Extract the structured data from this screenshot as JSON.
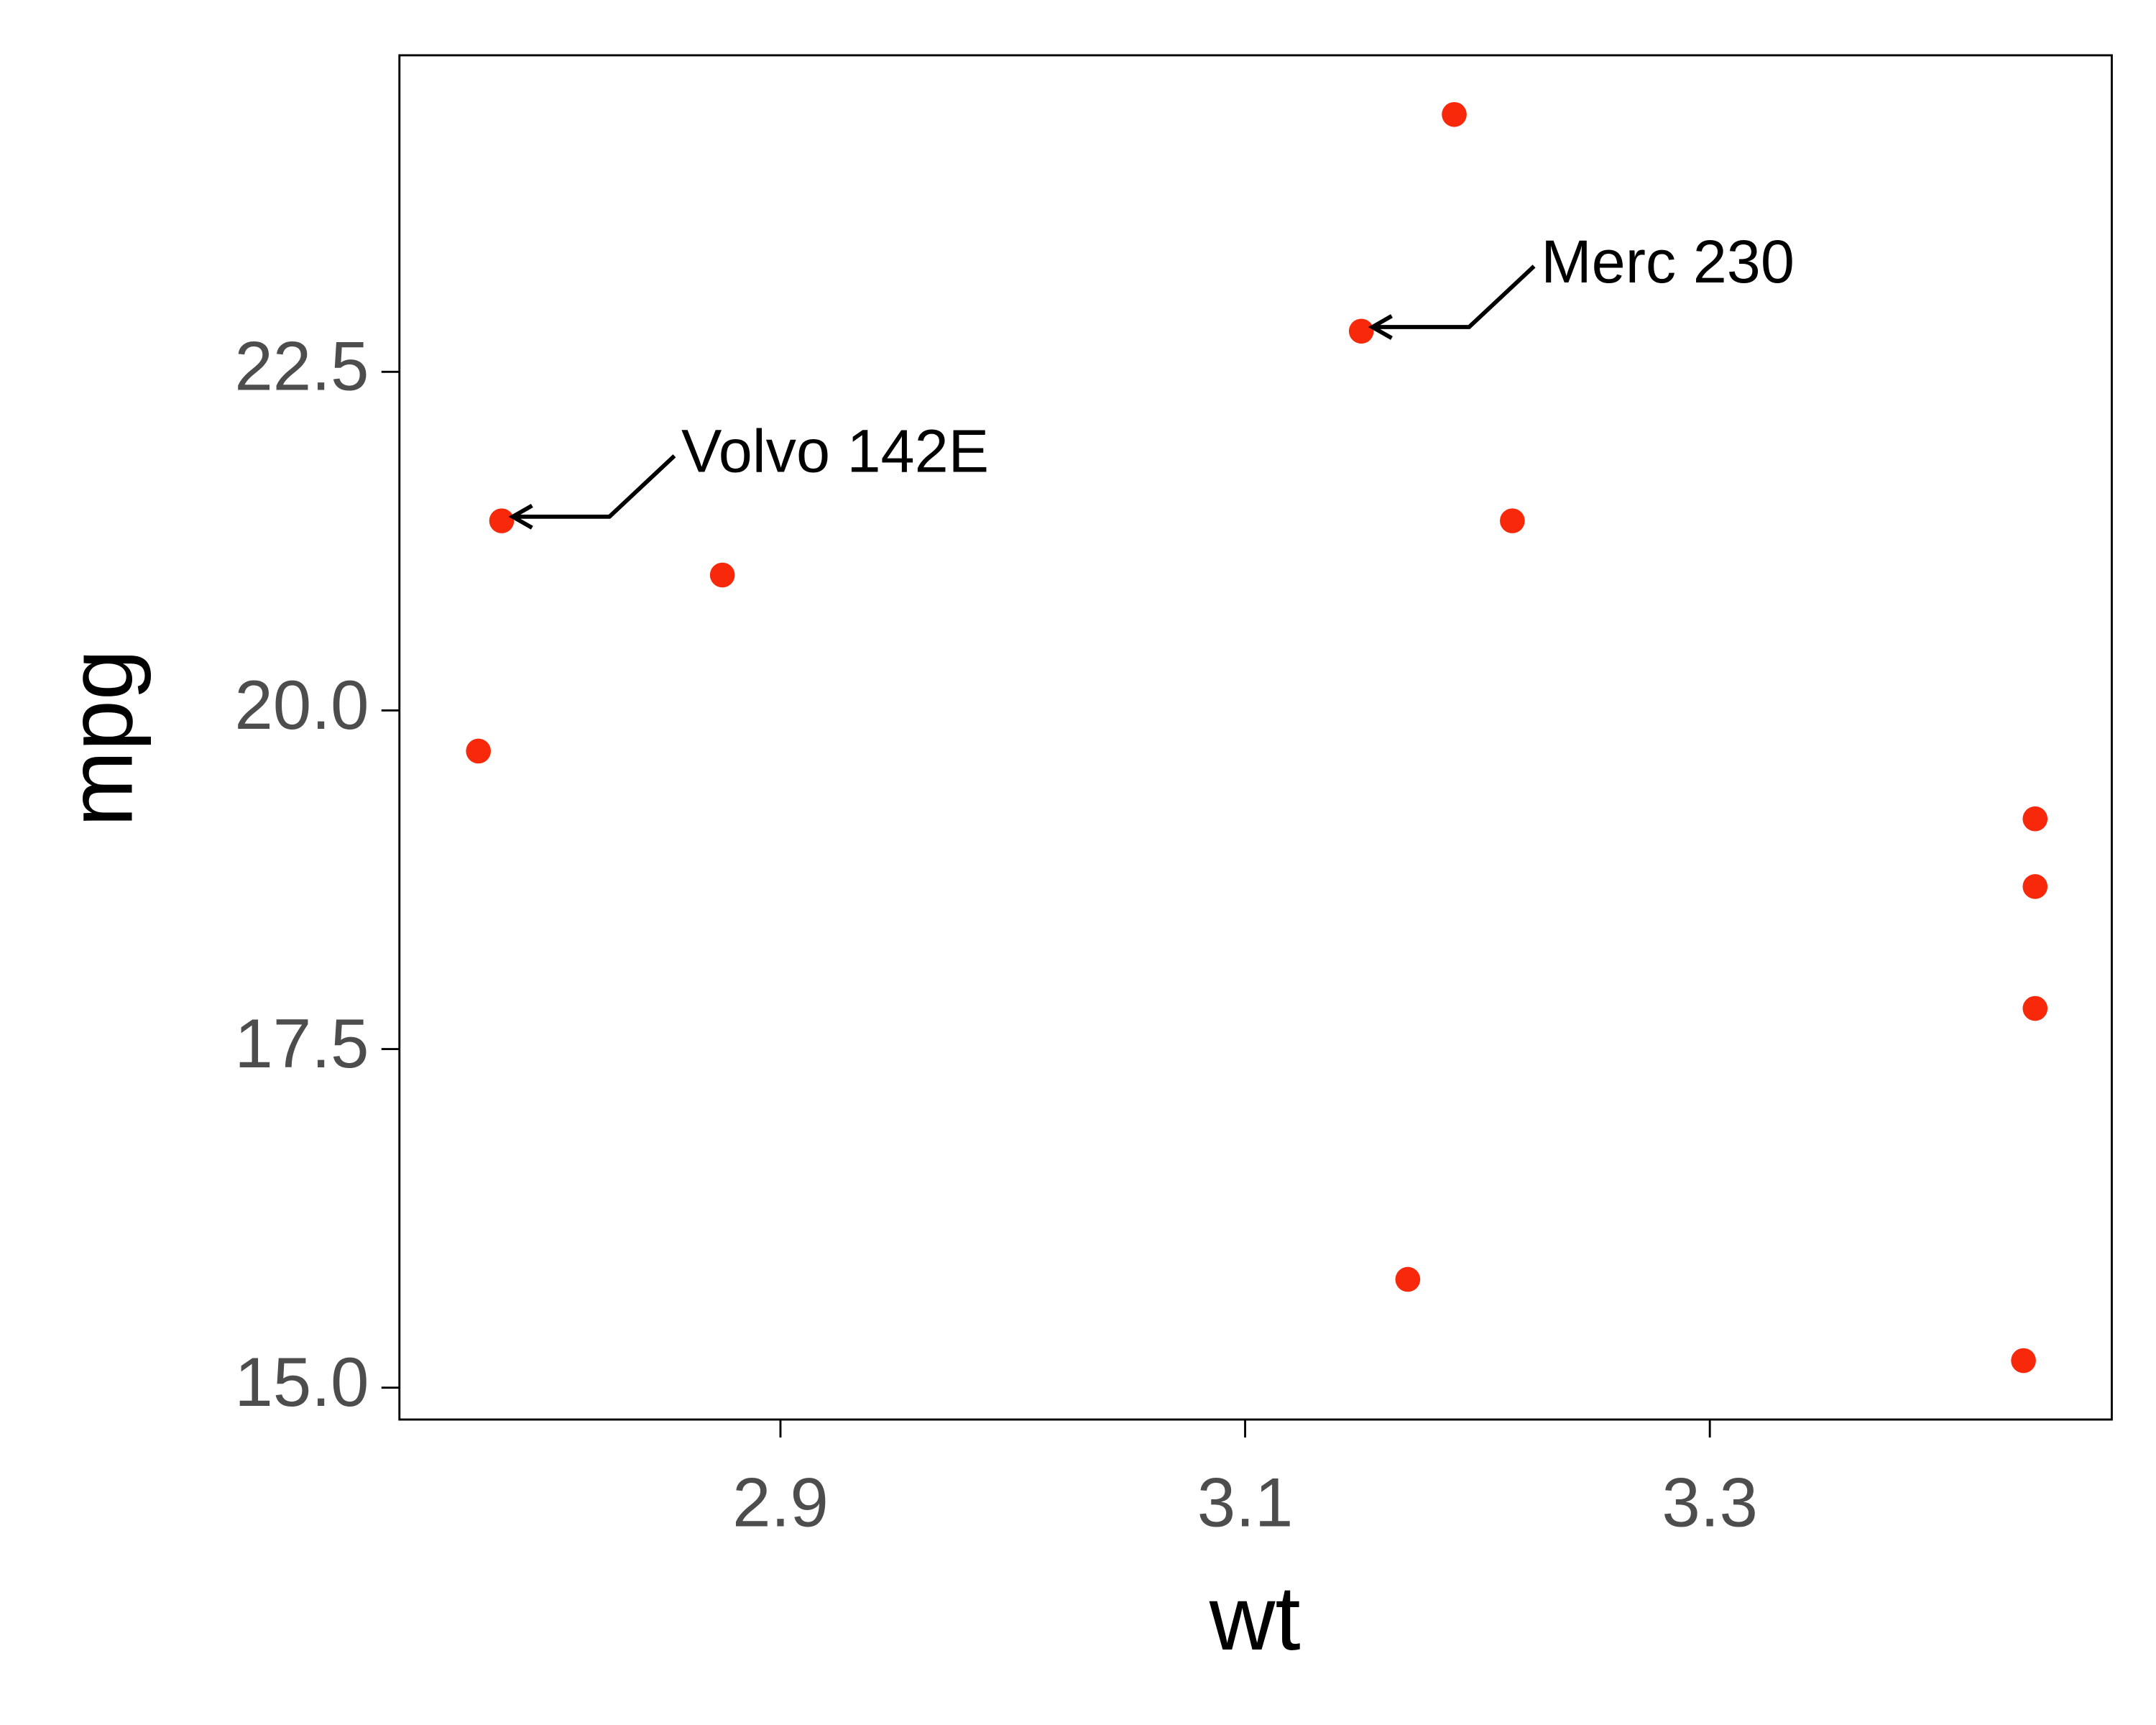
{
  "chart_data": {
    "type": "scatter",
    "x_label": "wt",
    "y_label": "mpg",
    "series": [
      {
        "color": "#f8290a",
        "x": [
          2.77,
          2.78,
          2.875,
          3.15,
          3.19,
          3.215,
          3.17,
          3.44,
          3.44,
          3.44,
          3.435
        ],
        "values": [
          19.7,
          21.4,
          21.0,
          22.8,
          24.4,
          21.4,
          15.8,
          19.2,
          18.7,
          17.8,
          15.2
        ]
      }
    ],
    "xlim": [
      2.736,
      3.473
    ],
    "ylim": [
      14.765,
      24.837
    ],
    "xticks": [
      2.9,
      3.1,
      3.3
    ],
    "yticks": [
      {
        "value": 15,
        "label": "15.0"
      },
      17.5,
      {
        "value": 20,
        "label": "20.0"
      },
      22.5
    ],
    "grid": false,
    "annotations": [
      {
        "text": "Volvo 142E",
        "x": 2.78,
        "y": 21.4
      },
      {
        "text": "Merc 230",
        "x": 3.15,
        "y": 22.8
      }
    ]
  }
}
